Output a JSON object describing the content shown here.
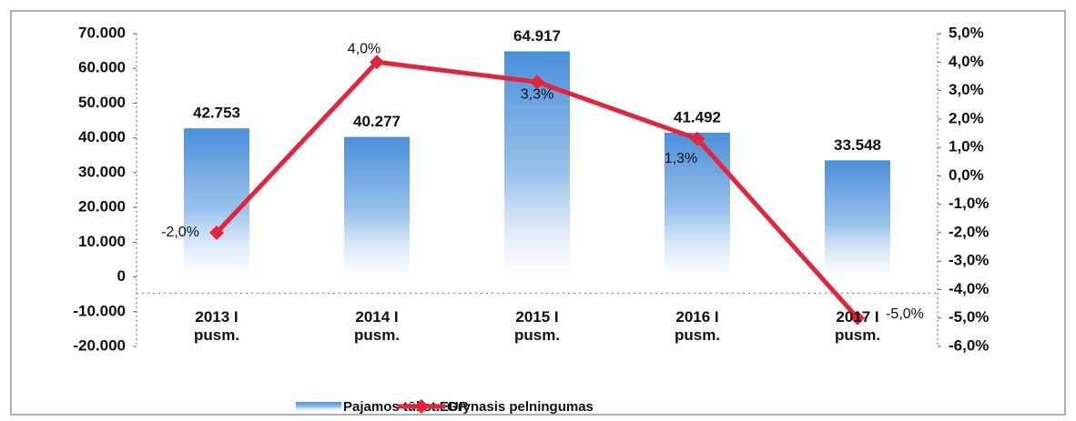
{
  "chart_data": {
    "type": "bar-line",
    "categories": [
      "2013 I pusm.",
      "2014 I pusm.",
      "2015 I pusm.",
      "2016 I pusm.",
      "2017 I pusm."
    ],
    "series": [
      {
        "name": "Pajamos tūkst.EUR",
        "type": "bar",
        "color": "#4a90da",
        "axis": "y",
        "values": [
          42753,
          40277,
          64917,
          41492,
          33548
        ],
        "value_labels": [
          "42.753",
          "40.277",
          "64.917",
          "41.492",
          "33.548"
        ]
      },
      {
        "name": "Grynasis pelningumas",
        "type": "line",
        "color": "#e2243c",
        "axis": "y2",
        "values": [
          -2.0,
          4.0,
          3.3,
          1.3,
          -5.0
        ],
        "value_labels": [
          "-2,0%",
          "4,0%",
          "3,3%",
          "1,3%",
          "-5,0%"
        ]
      }
    ],
    "ylim": [
      -20000,
      70000
    ],
    "yticks": [
      {
        "value": -20000,
        "label": "-20.000"
      },
      {
        "value": -10000,
        "label": "-10.000"
      },
      0,
      {
        "value": 10000,
        "label": "10.000"
      },
      {
        "value": 20000,
        "label": "20.000"
      },
      {
        "value": 30000,
        "label": "30.000"
      },
      {
        "value": 40000,
        "label": "40.000"
      },
      {
        "value": 50000,
        "label": "50.000"
      },
      {
        "value": 60000,
        "label": "60.000"
      },
      {
        "value": 70000,
        "label": "70.000"
      }
    ],
    "y2lim": [
      -6,
      5
    ],
    "y2ticks": [
      {
        "value": -6,
        "label": "-6,0%"
      },
      {
        "value": -5,
        "label": "-5,0%"
      },
      {
        "value": -4,
        "label": "-4,0%"
      },
      {
        "value": -3,
        "label": "-3,0%"
      },
      {
        "value": -2,
        "label": "-2,0%"
      },
      {
        "value": -1,
        "label": "-1,0%"
      },
      {
        "value": 0,
        "label": "0,0%"
      },
      {
        "value": 1,
        "label": "1,0%"
      },
      {
        "value": 2,
        "label": "2,0%"
      },
      {
        "value": 3,
        "label": "3,0%"
      },
      {
        "value": 4,
        "label": "4,0%"
      },
      {
        "value": 5,
        "label": "5,0%"
      }
    ],
    "legend": "bottom"
  }
}
